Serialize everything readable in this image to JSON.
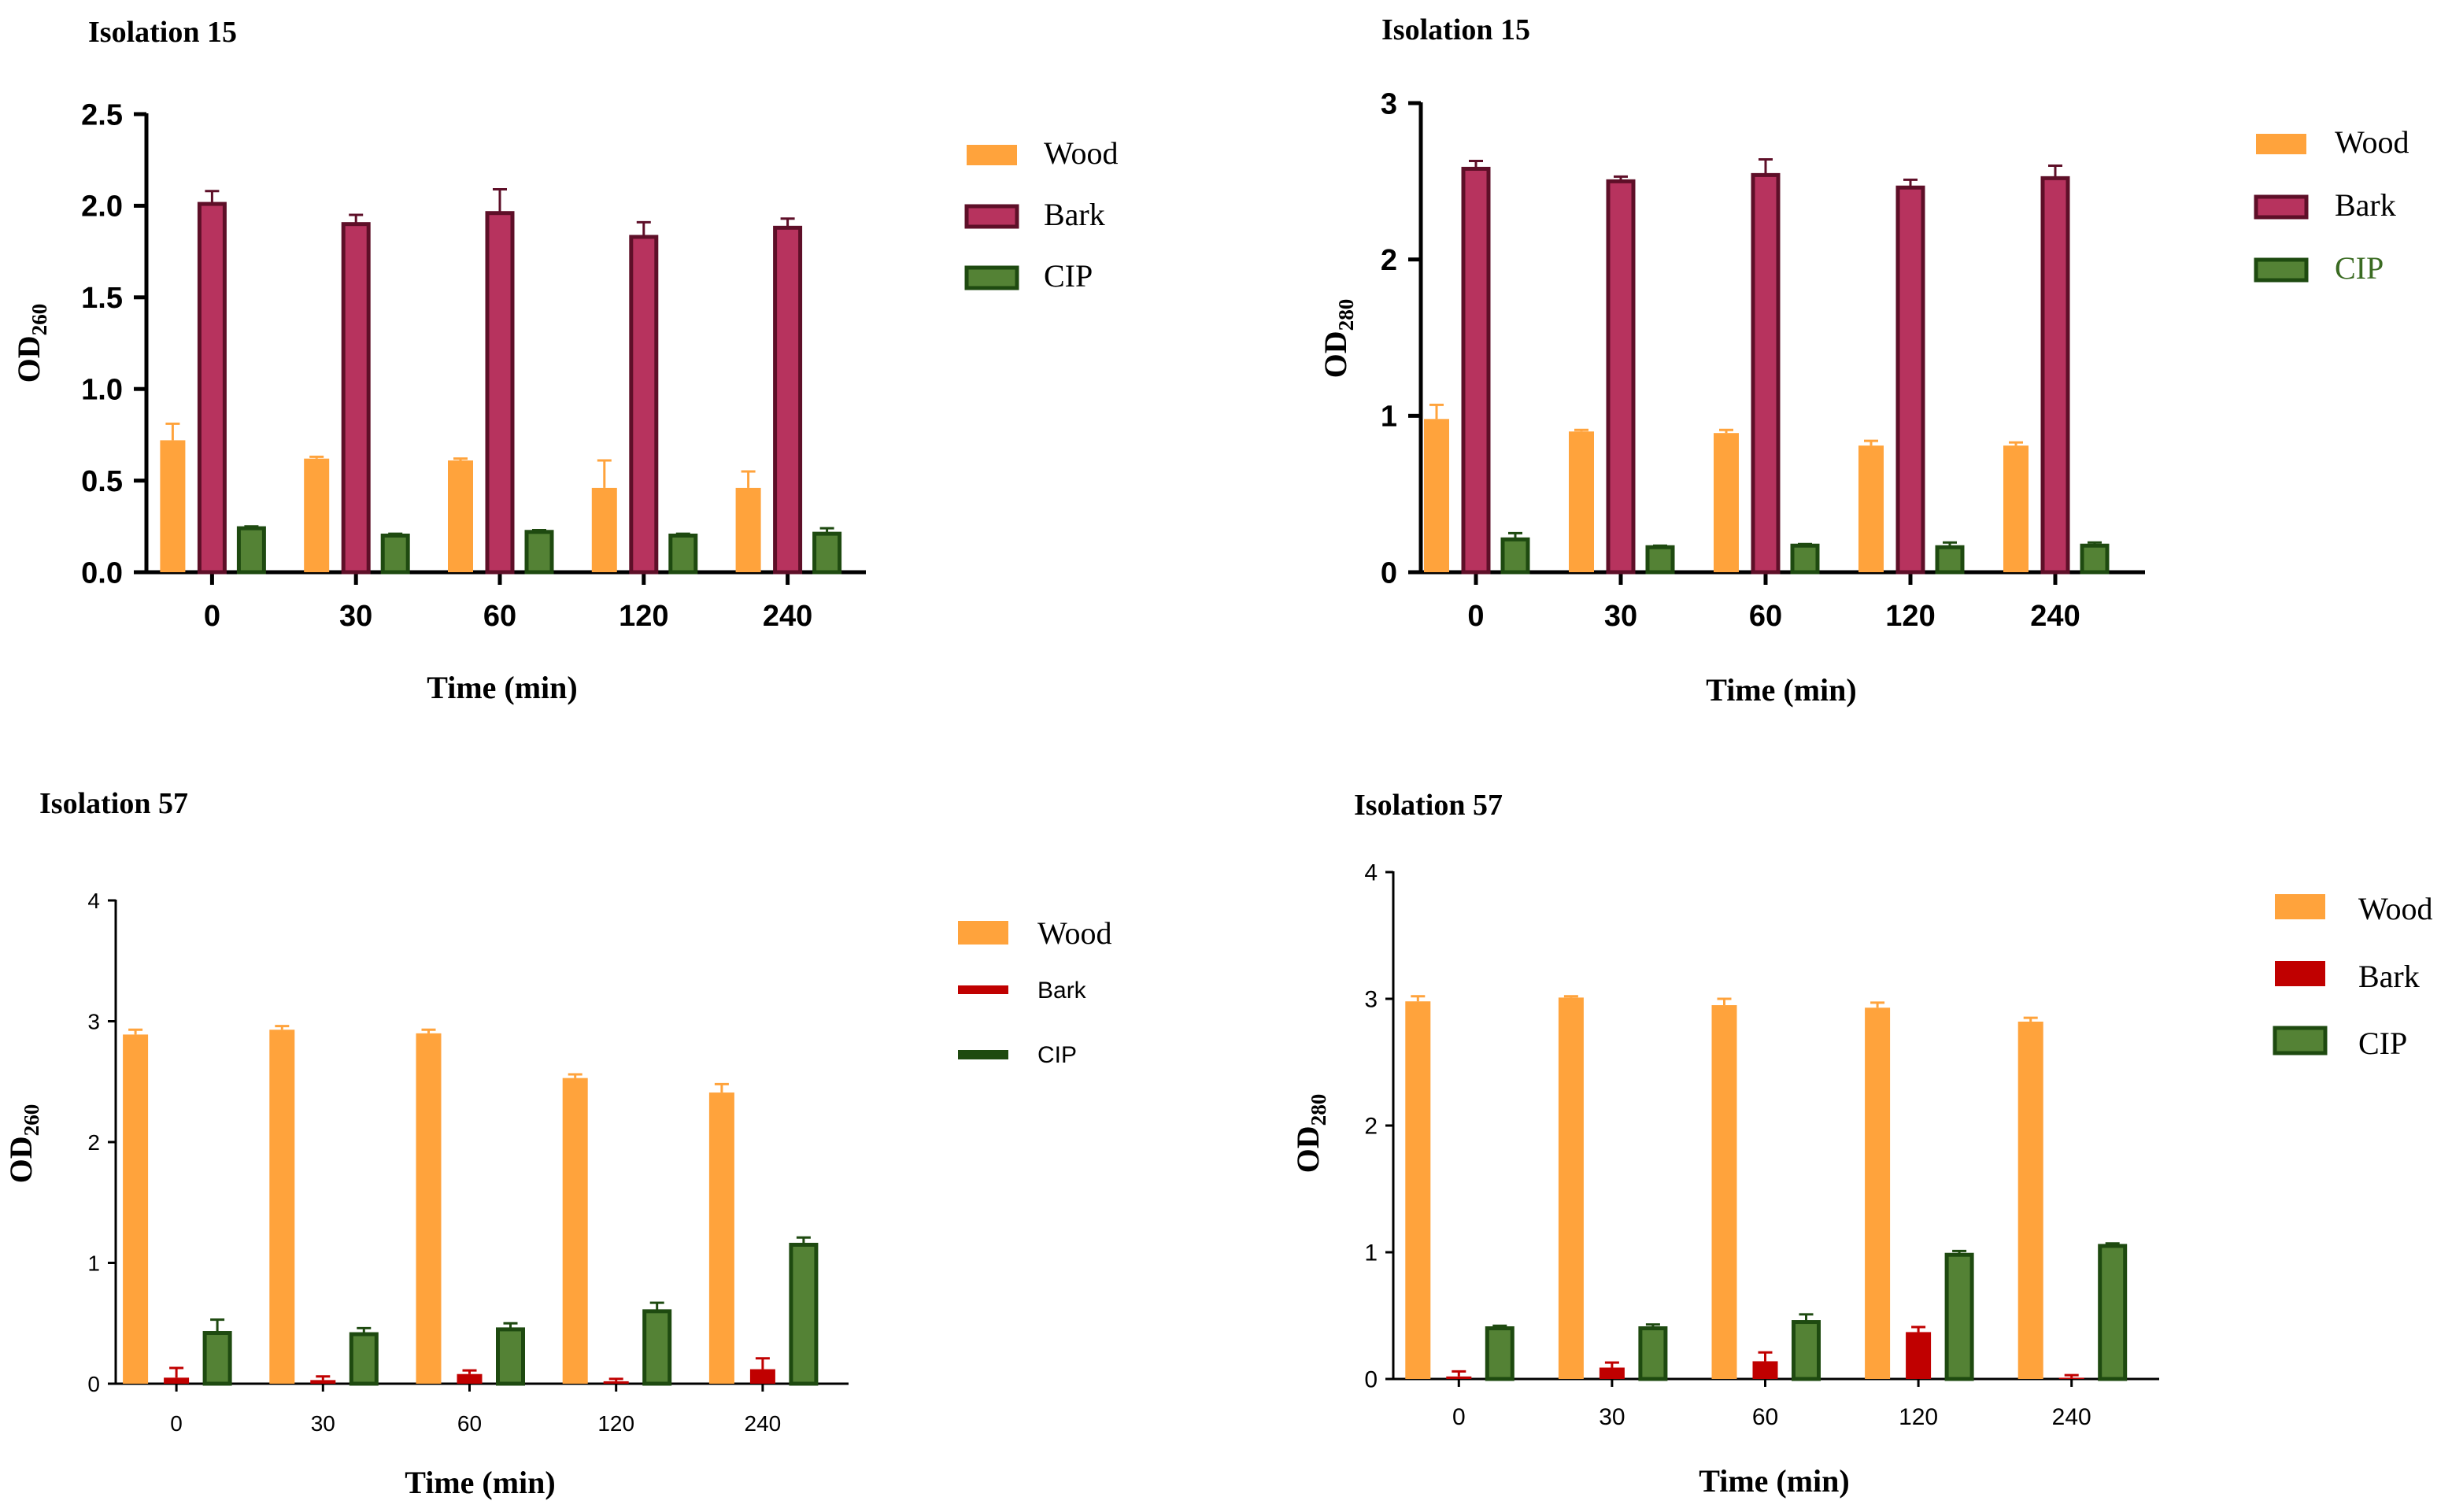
{
  "colors": {
    "wood": "#FFA33C",
    "bark_maroon": "#B7335E",
    "bark_maroon_edge": "#5E0F28",
    "bark_red": "#C00000",
    "cip": "#548235",
    "cip_edge": "#1E4A10",
    "axis": "#000000"
  },
  "chart_data": [
    {
      "type": "bar",
      "title": "Isolation 15",
      "ylabel": "OD",
      "ylabel_sub": "260",
      "xlabel": "Time (min)",
      "categories": [
        "0",
        "30",
        "60",
        "120",
        "240"
      ],
      "ylim": [
        0,
        2.5
      ],
      "yticks": [
        "0.0",
        "0.5",
        "1.0",
        "1.5",
        "2.0",
        "2.5"
      ],
      "series": [
        {
          "name": "Wood",
          "values": [
            0.72,
            0.62,
            0.61,
            0.46,
            0.46
          ],
          "errors": [
            0.09,
            0.01,
            0.01,
            0.15,
            0.09
          ]
        },
        {
          "name": "Bark",
          "values": [
            2.01,
            1.9,
            1.96,
            1.83,
            1.88
          ],
          "errors": [
            0.07,
            0.05,
            0.13,
            0.08,
            0.05
          ]
        },
        {
          "name": "CIP",
          "values": [
            0.24,
            0.2,
            0.22,
            0.2,
            0.21
          ],
          "errors": [
            0.01,
            0.01,
            0.01,
            0.01,
            0.03
          ]
        }
      ]
    },
    {
      "type": "bar",
      "title": "Isolation 15",
      "ylabel": "OD",
      "ylabel_sub": "280",
      "xlabel": "Time (min)",
      "categories": [
        "0",
        "30",
        "60",
        "120",
        "240"
      ],
      "ylim": [
        0,
        3
      ],
      "yticks": [
        "0",
        "1",
        "2",
        "3"
      ],
      "series": [
        {
          "name": "Wood",
          "values": [
            0.98,
            0.9,
            0.89,
            0.81,
            0.81
          ],
          "errors": [
            0.09,
            0.01,
            0.02,
            0.03,
            0.02
          ]
        },
        {
          "name": "Bark",
          "values": [
            2.58,
            2.5,
            2.54,
            2.46,
            2.52
          ],
          "errors": [
            0.05,
            0.03,
            0.1,
            0.05,
            0.08
          ]
        },
        {
          "name": "CIP",
          "values": [
            0.21,
            0.16,
            0.17,
            0.16,
            0.17
          ],
          "errors": [
            0.04,
            0.01,
            0.01,
            0.03,
            0.02
          ]
        }
      ]
    },
    {
      "type": "bar",
      "title": "Isolation 57",
      "ylabel": "OD",
      "ylabel_sub": "260",
      "xlabel": "Time (min)",
      "categories": [
        "0",
        "30",
        "60",
        "120",
        "240"
      ],
      "ylim": [
        0,
        4
      ],
      "yticks": [
        "0",
        "1",
        "2",
        "3",
        "4"
      ],
      "series": [
        {
          "name": "Wood",
          "values": [
            2.89,
            2.93,
            2.9,
            2.53,
            2.41
          ],
          "errors": [
            0.04,
            0.03,
            0.03,
            0.03,
            0.07
          ]
        },
        {
          "name": "Bark",
          "values": [
            0.05,
            0.03,
            0.08,
            0.02,
            0.12
          ],
          "errors": [
            0.08,
            0.03,
            0.03,
            0.02,
            0.09
          ]
        },
        {
          "name": "CIP",
          "values": [
            0.42,
            0.41,
            0.45,
            0.6,
            1.15
          ],
          "errors": [
            0.11,
            0.05,
            0.05,
            0.07,
            0.06
          ]
        }
      ]
    },
    {
      "type": "bar",
      "title": "Isolation 57",
      "ylabel": "OD",
      "ylabel_sub": "280",
      "xlabel": "Time (min)",
      "categories": [
        "0",
        "30",
        "60",
        "120",
        "240"
      ],
      "ylim": [
        0,
        4
      ],
      "yticks": [
        "0",
        "1",
        "2",
        "3",
        "4"
      ],
      "series": [
        {
          "name": "Wood",
          "values": [
            2.98,
            3.01,
            2.95,
            2.93,
            2.82
          ],
          "errors": [
            0.04,
            0.01,
            0.05,
            0.04,
            0.03
          ]
        },
        {
          "name": "Bark",
          "values": [
            0.02,
            0.09,
            0.14,
            0.37,
            0.01
          ],
          "errors": [
            0.04,
            0.04,
            0.07,
            0.04,
            0.02
          ]
        },
        {
          "name": "CIP",
          "values": [
            0.4,
            0.4,
            0.45,
            0.98,
            1.05
          ],
          "errors": [
            0.02,
            0.03,
            0.06,
            0.03,
            0.02
          ]
        }
      ]
    }
  ]
}
